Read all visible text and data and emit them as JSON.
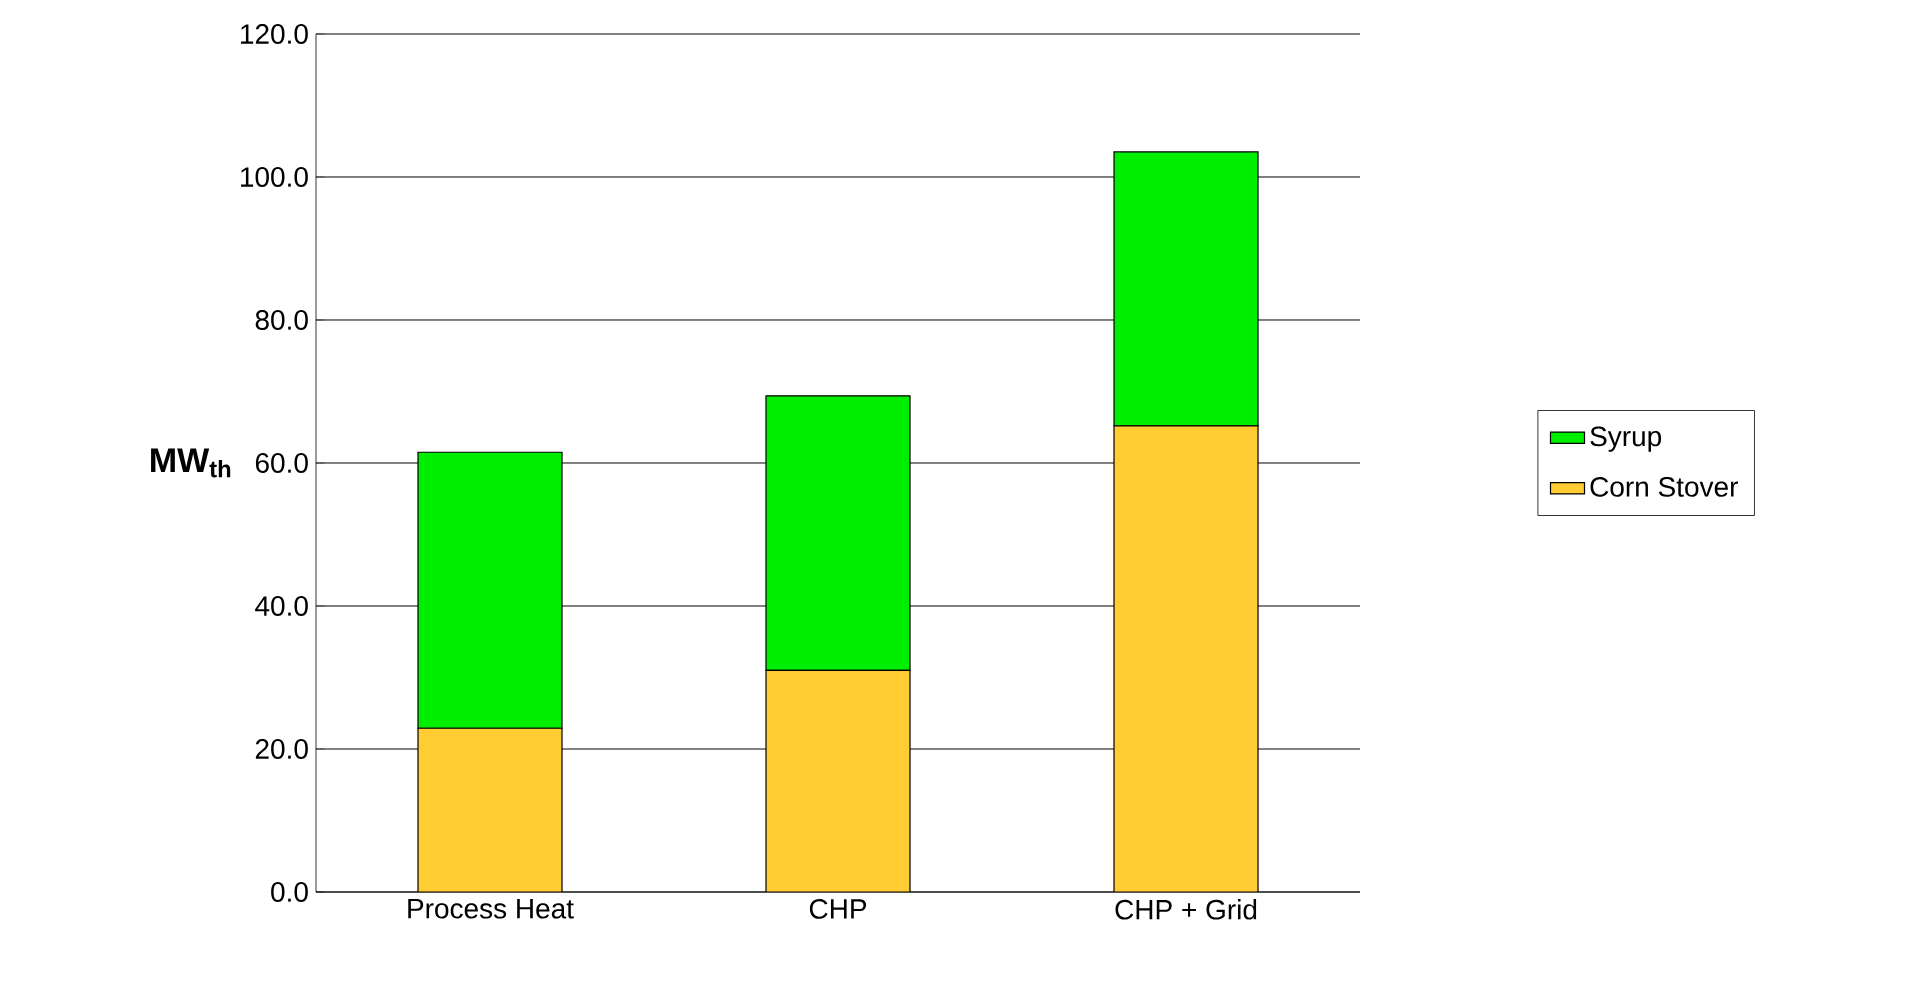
{
  "chart_data": {
    "type": "bar",
    "stacked": true,
    "ylabel": "MW$_{th}$",
    "categories": [
      "Process Heat",
      "CHP",
      "CHP + Grid"
    ],
    "series": [
      {
        "name": "Corn Stover",
        "color": "#ffcc33",
        "values": [
          22.9,
          31.0,
          65.2
        ]
      },
      {
        "name": "Syrup",
        "color": "#00ee00",
        "values": [
          38.6,
          38.4,
          38.3
        ]
      }
    ],
    "ylim": [
      0,
      120
    ],
    "yticks": [
      {
        "value": 0,
        "label": "0.0"
      },
      {
        "value": 20,
        "label": "20.0"
      },
      {
        "value": 40,
        "label": "40.0"
      },
      {
        "value": 60,
        "label": "60.0"
      },
      {
        "value": 80,
        "label": "80.0"
      },
      {
        "value": 100,
        "label": "100.0"
      },
      {
        "value": 120,
        "label": "120.0"
      }
    ],
    "grid": "y",
    "legend": "right"
  }
}
